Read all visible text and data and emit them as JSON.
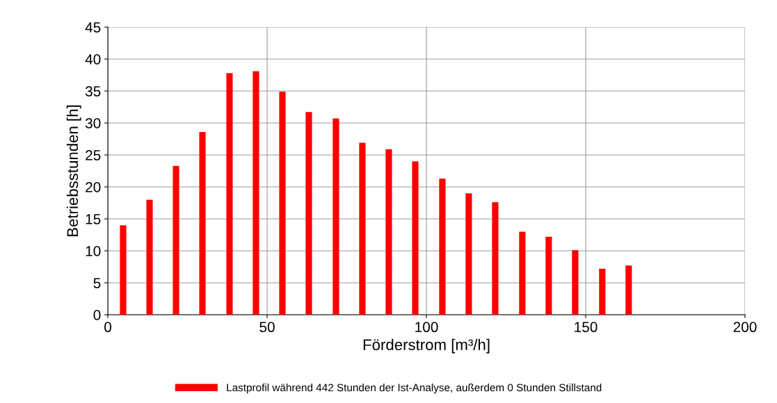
{
  "chart_data": {
    "type": "bar",
    "xlabel": "Förderstrom [m³/h]",
    "ylabel": "Betriebsstunden [h]",
    "x": [
      4.8,
      13.1,
      21.4,
      29.7,
      38.2,
      46.5,
      54.8,
      63.1,
      71.6,
      79.9,
      88.2,
      96.5,
      105,
      113.3,
      121.6,
      130.1,
      138.4,
      146.7,
      155.2,
      163.5
    ],
    "series": [
      {
        "name": "Lastprofil während 442 Stunden der Ist-Analyse, außerdem 0 Stunden Stillstand",
        "color": "#ff0000",
        "values": [
          14,
          18,
          23.3,
          28.6,
          37.8,
          38.1,
          34.9,
          31.7,
          30.7,
          26.9,
          25.9,
          24,
          21.3,
          19,
          17.6,
          13,
          12.2,
          10.1,
          7.2,
          7.7
        ]
      }
    ],
    "xlim": [
      0,
      200
    ],
    "xticks": [
      0,
      50,
      100,
      150,
      200
    ],
    "ylim": [
      0,
      45
    ],
    "yticks": [
      0,
      5,
      10,
      15,
      20,
      25,
      30,
      35,
      40,
      45
    ],
    "grid": true,
    "legend": "bottom"
  }
}
